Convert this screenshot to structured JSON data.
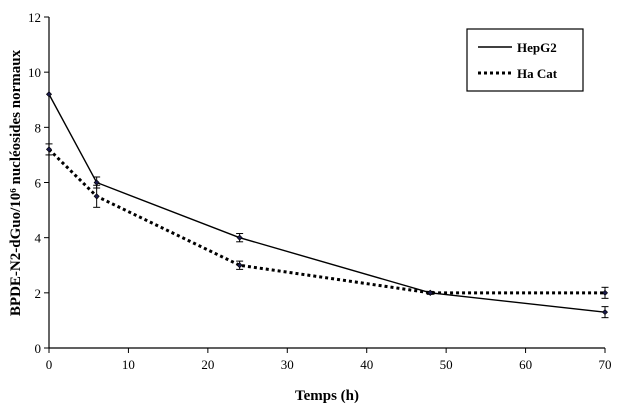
{
  "chart_data": {
    "type": "line",
    "title": "",
    "xlabel": "Temps (h)",
    "ylabel": "BPDE-N2-dGuo/10⁶ nucléosides normaux",
    "xlim": [
      0,
      70
    ],
    "ylim": [
      0,
      12
    ],
    "xticks": [
      0,
      10,
      20,
      30,
      40,
      50,
      60,
      70
    ],
    "yticks": [
      0,
      2,
      4,
      6,
      8,
      10,
      12
    ],
    "grid": false,
    "legend_position": "top-right",
    "series": [
      {
        "name": "HepG2",
        "style": "solid",
        "color": "#000000",
        "x": [
          0,
          6,
          24,
          48,
          70
        ],
        "y": [
          9.2,
          6.0,
          4.0,
          2.0,
          1.3
        ],
        "err": [
          0.0,
          0.2,
          0.15,
          0.05,
          0.2
        ]
      },
      {
        "name": "Ha Cat",
        "style": "dotted",
        "color": "#000000",
        "x": [
          0,
          6,
          24,
          48,
          70
        ],
        "y": [
          7.2,
          5.5,
          3.0,
          2.0,
          2.0
        ],
        "err": [
          0.2,
          0.4,
          0.15,
          0.05,
          0.2
        ]
      }
    ]
  }
}
